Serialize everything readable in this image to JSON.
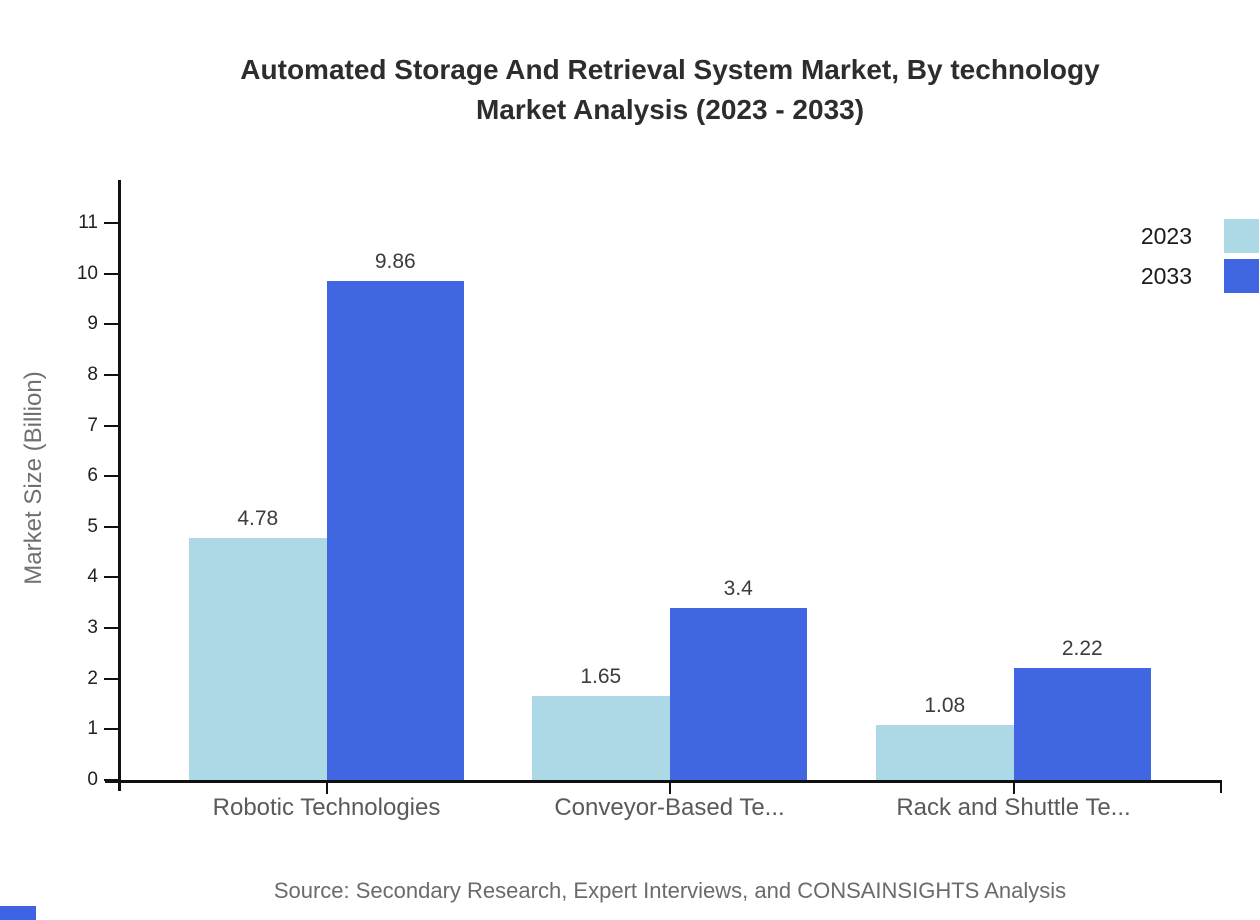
{
  "title": {
    "line1": "Automated Storage And Retrieval System Market, By technology",
    "line2": "Market Analysis (2023 - 2033)"
  },
  "y_axis_label": "Market Size (Billion)",
  "source_text": "Source: Secondary Research, Expert Interviews, and CONSAINSIGHTS Analysis",
  "legend": {
    "items": [
      {
        "label": "2023",
        "color": "#ADD8E6"
      },
      {
        "label": "2033",
        "color": "#4066E2"
      }
    ]
  },
  "chart_data": {
    "type": "bar",
    "title": "Automated Storage And Retrieval System Market, By technology Market Analysis (2023 - 2033)",
    "categories": [
      "Robotic Technologies",
      "Conveyor-Based Te...",
      "Rack and Shuttle Te..."
    ],
    "series": [
      {
        "name": "2023",
        "color": "#ADD8E6",
        "values": [
          4.78,
          1.65,
          1.08
        ]
      },
      {
        "name": "2033",
        "color": "#4066E2",
        "values": [
          9.86,
          3.4,
          2.22
        ]
      }
    ],
    "xlabel": "",
    "ylabel": "Market Size (Billion)",
    "ylim": [
      0,
      11
    ],
    "yticks": [
      0,
      1,
      2,
      3,
      4,
      5,
      6,
      7,
      8,
      9,
      10,
      11
    ],
    "grid": false,
    "legend_position": "top-right",
    "value_labels": true
  },
  "colors": {
    "axis": "#111111",
    "title_text": "#2d2d2d",
    "tick_text": "#212121",
    "category_text": "#5a5a5a",
    "value_text": "#3c3c3c",
    "muted_text": "#6b6b6b",
    "series_2023": "#ADD8E6",
    "series_2033": "#4066E2",
    "watermark": "#3D64E2"
  }
}
